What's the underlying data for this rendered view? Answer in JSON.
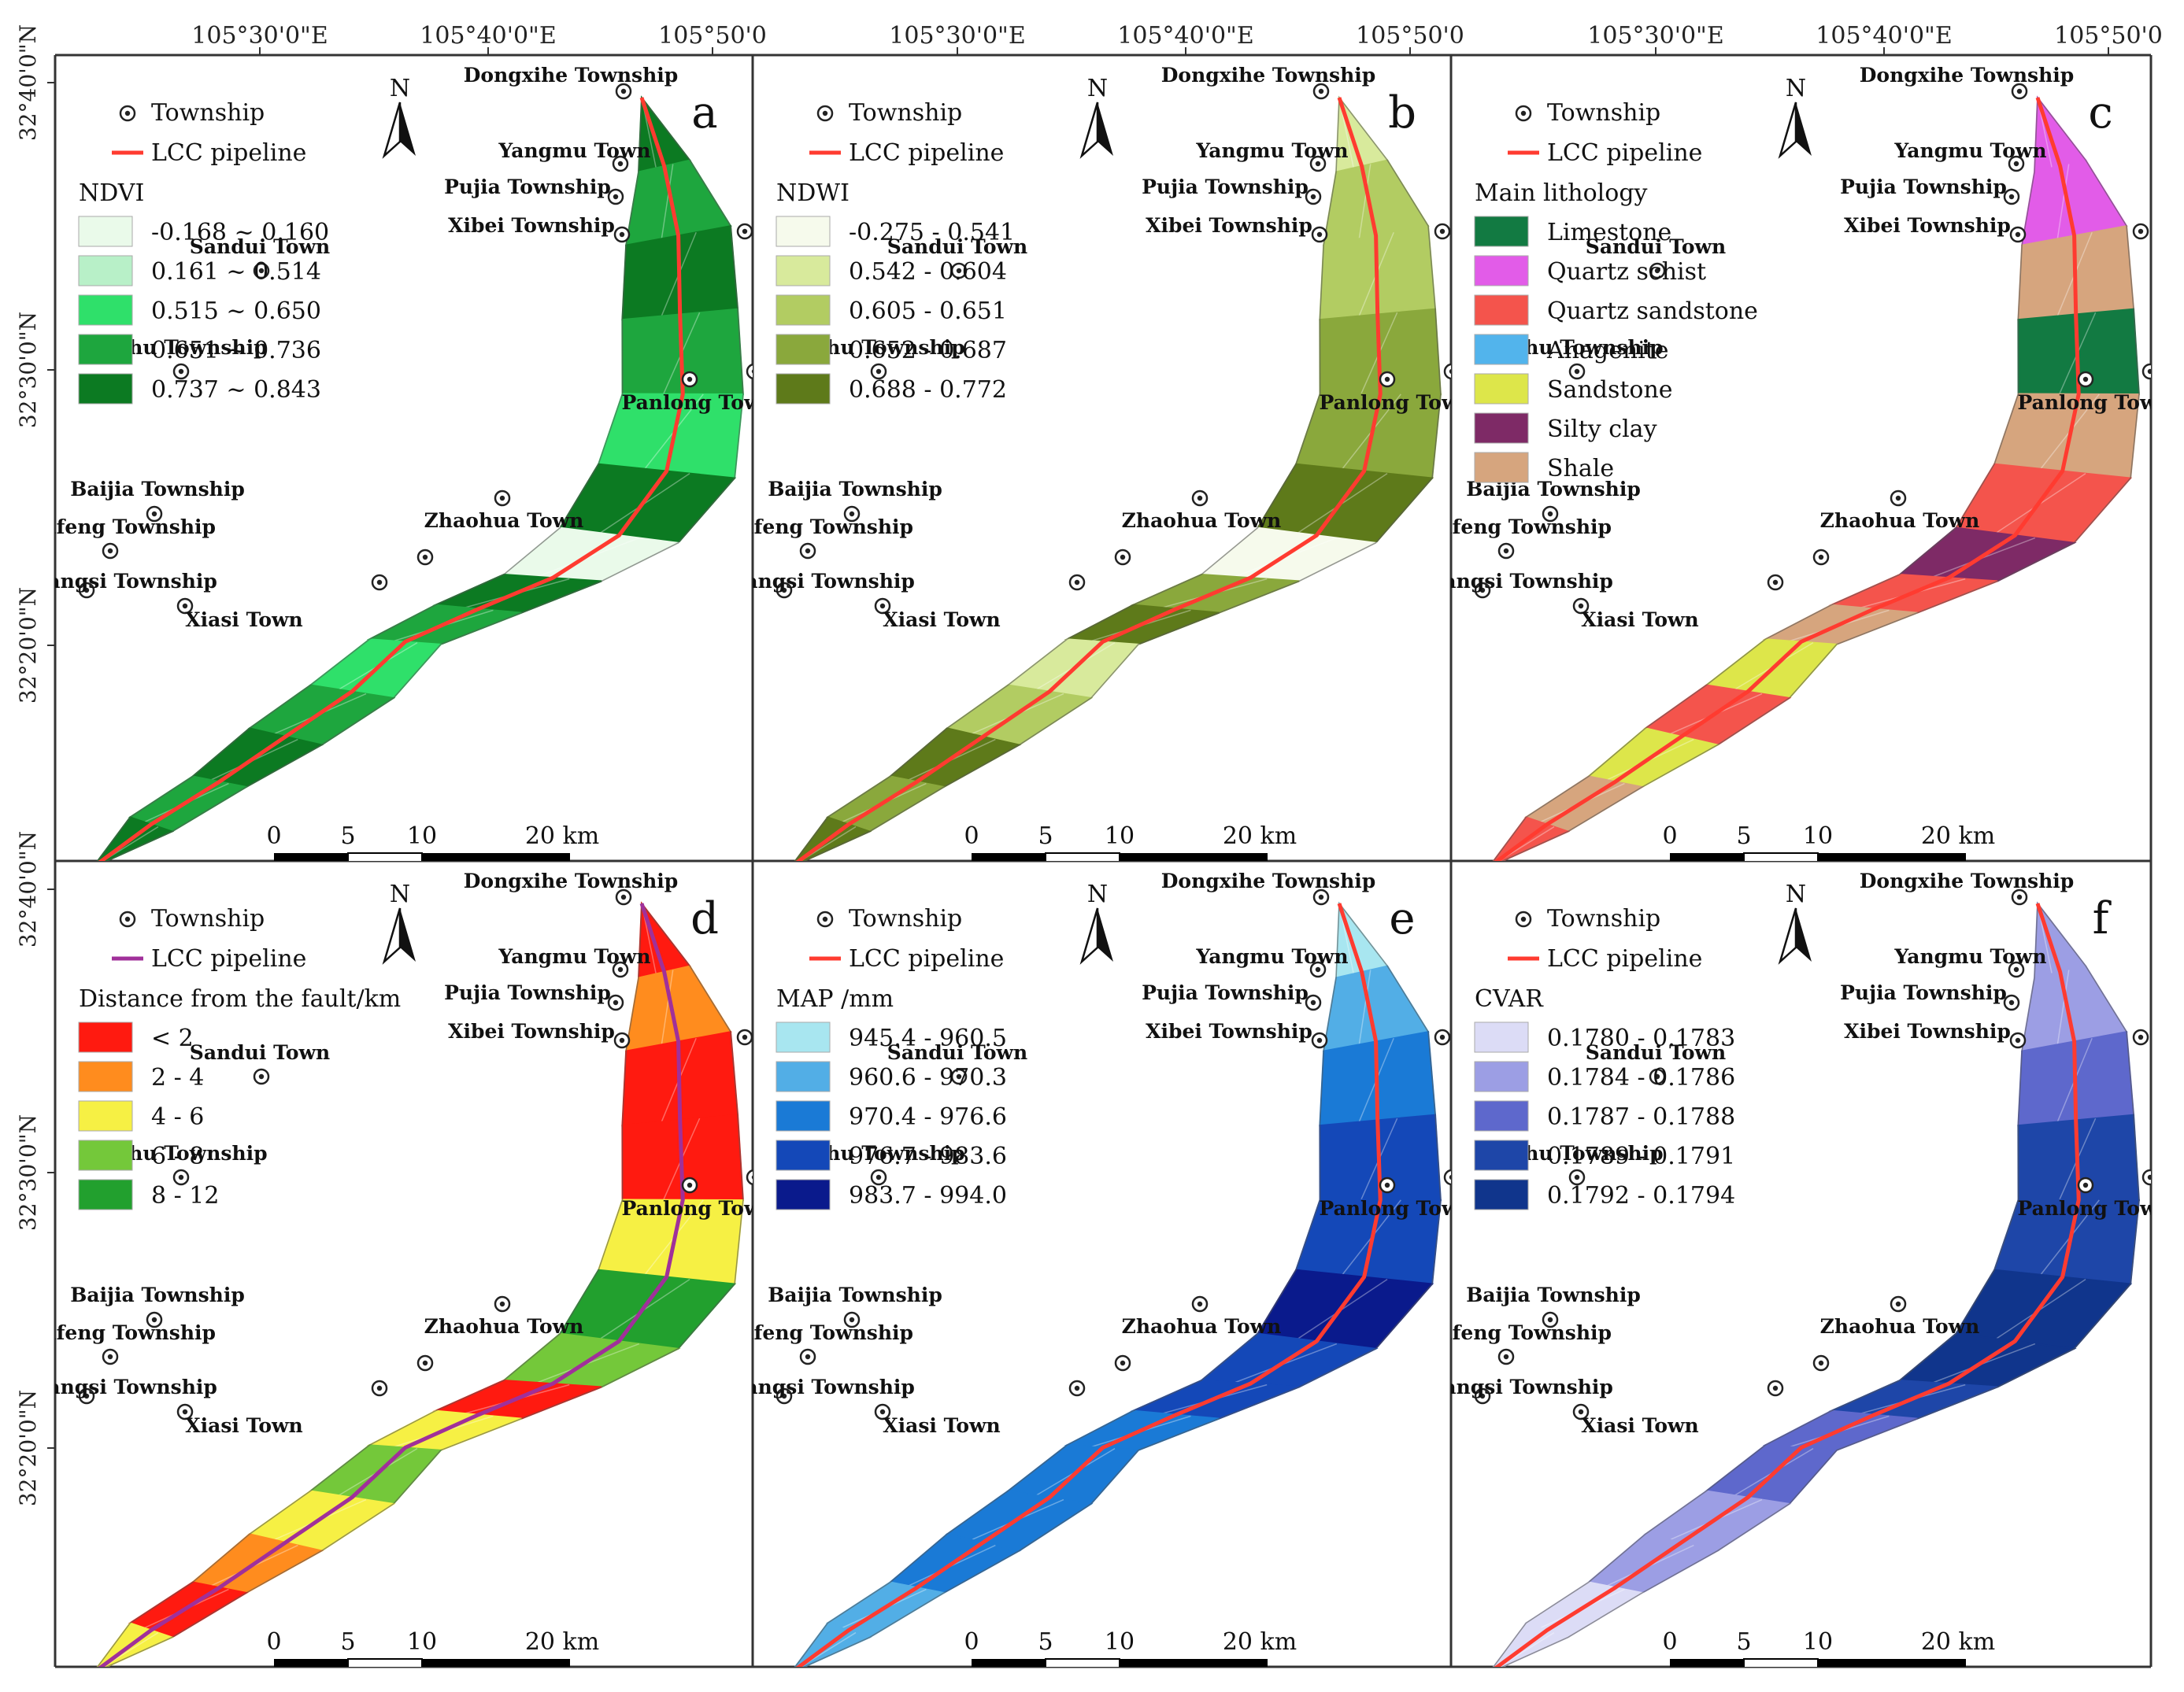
{
  "frame": {
    "top_lon_labels": [
      "105°30'0\"E",
      "105°40'0\"E",
      "105°50'0"
    ],
    "lat_labels": [
      "32°40'0\"N",
      "32°30'0\"N",
      "32°20'0\"N"
    ]
  },
  "places": [
    {
      "name": "Dongxihe Township"
    },
    {
      "name": "Yangmu Town"
    },
    {
      "name": "Pujia Township"
    },
    {
      "name": "Xibei Township"
    },
    {
      "name": "Sandui Town"
    },
    {
      "name": "Baihu Township"
    },
    {
      "name": "Panlong Tow"
    },
    {
      "name": "Baijia Township"
    },
    {
      "name": "Zhaohua Town"
    },
    {
      "name": "Jianfeng Township"
    },
    {
      "name": "Shangsi Township"
    },
    {
      "name": "Xiasi Town"
    }
  ],
  "common_legend": {
    "township": "Township",
    "pipeline": "LCC pipeline"
  },
  "north_label": "N",
  "scalebar": {
    "labels": [
      "0",
      "5",
      "10",
      "20 km"
    ]
  },
  "panels": [
    {
      "letter": "a",
      "legend_title": "NDVI",
      "pipeline_color": "#ff3b30",
      "classes": [
        {
          "label": "-0.168 ~ 0.160",
          "color": "#eafaea"
        },
        {
          "label": "0.161 ~ 0.514",
          "color": "#b8f0c8"
        },
        {
          "label": "0.515 ~ 0.650",
          "color": "#2fe06a"
        },
        {
          "label": "0.651 ~ 0.736",
          "color": "#1ea63e"
        },
        {
          "label": "0.737 ~ 0.843",
          "color": "#0c7a22"
        }
      ],
      "zone_classes": [
        4,
        3,
        4,
        3,
        2,
        4,
        0,
        4,
        3,
        2,
        3,
        4,
        3,
        4
      ]
    },
    {
      "letter": "b",
      "legend_title": "NDWI",
      "pipeline_color": "#ff3b30",
      "classes": [
        {
          "label": "-0.275 - 0.541",
          "color": "#f6faec"
        },
        {
          "label": "0.542 - 0.604",
          "color": "#d8ea9c"
        },
        {
          "label": "0.605 - 0.651",
          "color": "#b2cc62"
        },
        {
          "label": "0.652 - 0.687",
          "color": "#8aa83c"
        },
        {
          "label": "0.688 - 0.772",
          "color": "#5e7a1a"
        }
      ],
      "zone_classes": [
        1,
        2,
        2,
        3,
        3,
        4,
        0,
        3,
        4,
        1,
        2,
        4,
        3,
        4
      ]
    },
    {
      "letter": "c",
      "legend_title": "Main lithology",
      "pipeline_color": "#ff3b30",
      "classes": [
        {
          "label": "Limestone",
          "color": "#127a42"
        },
        {
          "label": "Quartz schist",
          "color": "#e25ce8"
        },
        {
          "label": "Quartz sandstone",
          "color": "#f4544c"
        },
        {
          "label": "Anagenite",
          "color": "#52b4ec"
        },
        {
          "label": "Sandstone",
          "color": "#dde64a"
        },
        {
          "label": "Silty clay",
          "color": "#7e2a66"
        },
        {
          "label": "Shale",
          "color": "#d6a57e"
        }
      ],
      "zone_classes": [
        1,
        1,
        6,
        0,
        6,
        2,
        5,
        2,
        6,
        4,
        2,
        4,
        6,
        2
      ]
    },
    {
      "letter": "d",
      "legend_title": "Distance from the fault/km",
      "pipeline_color": "#a0309a",
      "classes": [
        {
          "label": "< 2",
          "color": "#ff1a10"
        },
        {
          "label": "2 - 4",
          "color": "#ff8c1e"
        },
        {
          "label": "4 - 6",
          "color": "#f6f044"
        },
        {
          "label": "6 - 8",
          "color": "#74c83a"
        },
        {
          "label": "8 - 12",
          "color": "#22a02e"
        }
      ],
      "zone_classes": [
        0,
        1,
        0,
        0,
        2,
        4,
        3,
        0,
        2,
        3,
        2,
        1,
        0,
        2
      ]
    },
    {
      "letter": "e",
      "legend_title": "MAP /mm",
      "pipeline_color": "#ff3b30",
      "classes": [
        {
          "label": "945.4 - 960.5",
          "color": "#a8e6f0"
        },
        {
          "label": "960.6 - 970.3",
          "color": "#52aee6"
        },
        {
          "label": "970.4 - 976.6",
          "color": "#1a7ad6"
        },
        {
          "label": "976.7 - 983.6",
          "color": "#1448b8"
        },
        {
          "label": "983.7 - 994.0",
          "color": "#0a1a8c"
        }
      ],
      "zone_classes": [
        0,
        1,
        2,
        3,
        3,
        4,
        3,
        3,
        2,
        2,
        2,
        2,
        1,
        1
      ]
    },
    {
      "letter": "f",
      "legend_title": "CVAR",
      "pipeline_color": "#ff3b30",
      "classes": [
        {
          "label": "0.1780 - 0.1783",
          "color": "#dcdcf6"
        },
        {
          "label": "0.1784 - 0.1786",
          "color": "#9c9ee4"
        },
        {
          "label": "0.1787 - 0.1788",
          "color": "#5e68cc"
        },
        {
          "label": "0.1789 - 0.1791",
          "color": "#1e46a8"
        },
        {
          "label": "0.1792 - 0.1794",
          "color": "#10358c"
        }
      ],
      "zone_classes": [
        1,
        1,
        2,
        3,
        3,
        4,
        4,
        3,
        2,
        2,
        1,
        1,
        0,
        0
      ]
    }
  ]
}
